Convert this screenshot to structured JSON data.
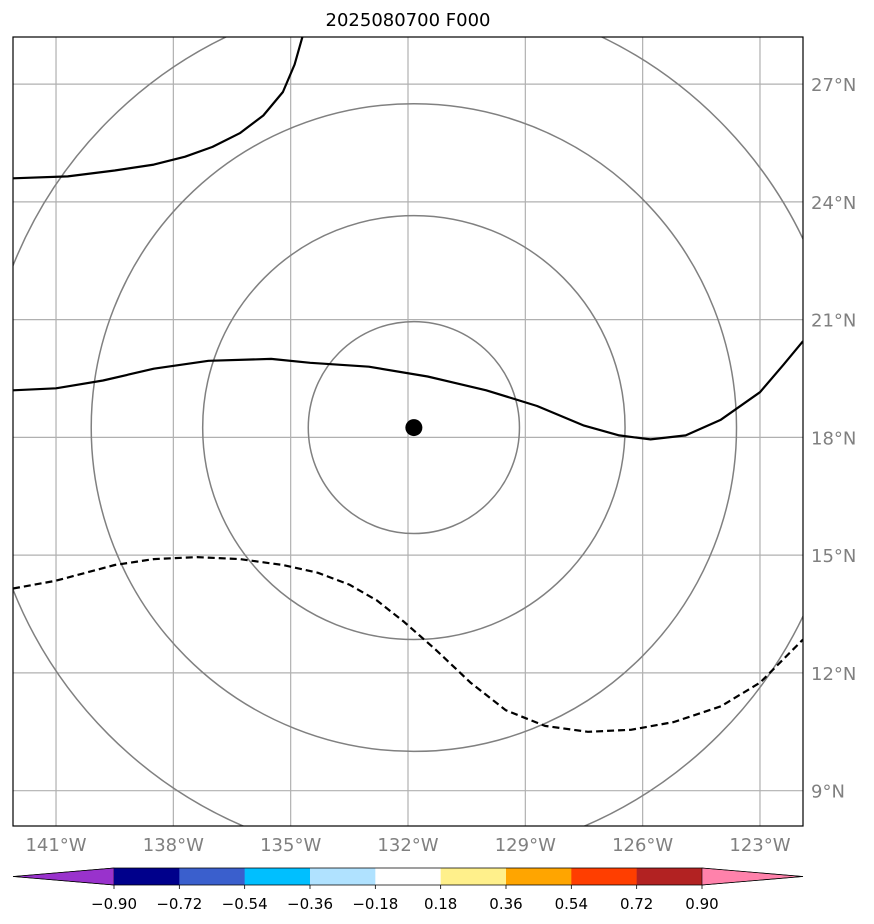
{
  "title": "2025080700 F000",
  "map": {
    "lon_range": [
      -142.1,
      -121.9
    ],
    "lat_range": [
      8.1,
      28.2
    ],
    "lat_ticks": [
      {
        "value": 9,
        "label": "9°N"
      },
      {
        "value": 12,
        "label": "12°N"
      },
      {
        "value": 15,
        "label": "15°N"
      },
      {
        "value": 18,
        "label": "18°N"
      },
      {
        "value": 21,
        "label": "21°N"
      },
      {
        "value": 24,
        "label": "24°N"
      },
      {
        "value": 27,
        "label": "27°N"
      }
    ],
    "lon_ticks": [
      {
        "value": -141,
        "label": "141°W"
      },
      {
        "value": -138,
        "label": "138°W"
      },
      {
        "value": -135,
        "label": "135°W"
      },
      {
        "value": -132,
        "label": "132°W"
      },
      {
        "value": -129,
        "label": "129°W"
      },
      {
        "value": -126,
        "label": "126°W"
      },
      {
        "value": -123,
        "label": "123°W"
      }
    ],
    "center": {
      "lon": -131.85,
      "lat": 18.25
    },
    "range_ring_radii_deg": [
      2.7,
      5.4,
      8.25,
      11.05
    ],
    "gridline_color": "#b0b0b0",
    "ring_color": "#808080",
    "contours": [
      {
        "style": "solid",
        "points": [
          [
            -142.1,
            24.6
          ],
          [
            -140.7,
            24.65
          ],
          [
            -139.5,
            24.8
          ],
          [
            -138.5,
            24.95
          ],
          [
            -137.7,
            25.15
          ],
          [
            -137.0,
            25.4
          ],
          [
            -136.3,
            25.75
          ],
          [
            -135.7,
            26.2
          ],
          [
            -135.2,
            26.8
          ],
          [
            -134.9,
            27.5
          ],
          [
            -134.7,
            28.2
          ]
        ]
      },
      {
        "style": "solid",
        "points": [
          [
            -142.1,
            19.2
          ],
          [
            -141.0,
            19.25
          ],
          [
            -139.8,
            19.45
          ],
          [
            -138.5,
            19.75
          ],
          [
            -137.1,
            19.95
          ],
          [
            -135.5,
            20.0
          ],
          [
            -134.5,
            19.9
          ],
          [
            -133.0,
            19.8
          ],
          [
            -131.5,
            19.55
          ],
          [
            -130.0,
            19.2
          ],
          [
            -128.7,
            18.8
          ],
          [
            -127.5,
            18.3
          ],
          [
            -126.6,
            18.05
          ],
          [
            -125.8,
            17.95
          ],
          [
            -124.9,
            18.05
          ],
          [
            -124.0,
            18.45
          ],
          [
            -123.0,
            19.15
          ],
          [
            -122.4,
            19.85
          ],
          [
            -121.9,
            20.45
          ]
        ]
      },
      {
        "style": "dashed",
        "points": [
          [
            -142.1,
            14.15
          ],
          [
            -141.0,
            14.35
          ],
          [
            -139.5,
            14.75
          ],
          [
            -138.5,
            14.9
          ],
          [
            -137.4,
            14.95
          ],
          [
            -136.3,
            14.9
          ],
          [
            -135.2,
            14.75
          ],
          [
            -134.3,
            14.55
          ],
          [
            -133.5,
            14.25
          ],
          [
            -132.8,
            13.85
          ],
          [
            -132.1,
            13.3
          ],
          [
            -131.3,
            12.6
          ],
          [
            -130.4,
            11.75
          ],
          [
            -129.5,
            11.05
          ],
          [
            -128.5,
            10.65
          ],
          [
            -127.4,
            10.5
          ],
          [
            -126.3,
            10.55
          ],
          [
            -125.2,
            10.75
          ],
          [
            -124.0,
            11.15
          ],
          [
            -123.0,
            11.75
          ],
          [
            -121.9,
            12.85
          ]
        ]
      }
    ]
  },
  "colorbar": {
    "colors": [
      "#9932cc",
      "#00008b",
      "#3a5fcd",
      "#00bfff",
      "#b0e2ff",
      "#ffffff",
      "#fff08b",
      "#ffa500",
      "#ff3e00",
      "#b22222",
      "#ff82ab"
    ],
    "labels": [
      "−0.90",
      "−0.72",
      "−0.54",
      "−0.36",
      "−0.18",
      "0.18",
      "0.36",
      "0.54",
      "0.72",
      "0.90"
    ]
  }
}
